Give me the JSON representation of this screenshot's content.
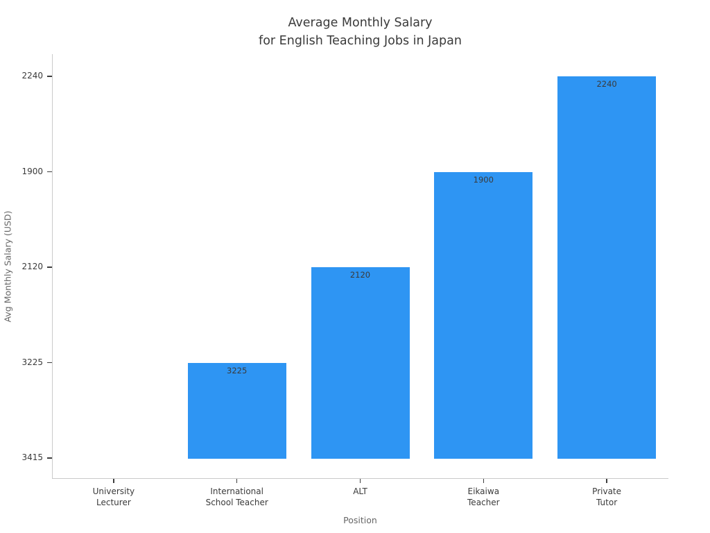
{
  "chart_data": {
    "type": "bar",
    "title": "Average Monthly Salary\nfor English Teaching Jobs in Japan",
    "title_lines": [
      "Average Monthly Salary",
      "for English Teaching Jobs in Japan"
    ],
    "xlabel": "Position",
    "ylabel": "Avg Monthly Salary (USD)",
    "categories": [
      "University Lecturer",
      "International School Teacher",
      "ALT",
      "Eikaiwa Teacher",
      "Private Tutor"
    ],
    "bars": [
      {
        "category": "University Lecturer",
        "label_lines": [
          "University",
          "Lecturer"
        ],
        "value_label": "",
        "height_level": 0
      },
      {
        "category": "International School Teacher",
        "label_lines": [
          "International",
          "School Teacher"
        ],
        "value_label": "3225",
        "height_level": 1
      },
      {
        "category": "ALT",
        "label_lines": [
          "ALT"
        ],
        "value_label": "2120",
        "height_level": 2
      },
      {
        "category": "Eikaiwa Teacher",
        "label_lines": [
          "Eikaiwa",
          "Teacher"
        ],
        "value_label": "1900",
        "height_level": 3
      },
      {
        "category": "Private Tutor",
        "label_lines": [
          "Private",
          "Tutor"
        ],
        "value_label": "2240",
        "height_level": 4
      }
    ],
    "ytick_labels_bottom_to_top": [
      "3415",
      "3225",
      "2120",
      "1900",
      "2240"
    ],
    "grid": false,
    "legend": false,
    "bar_width_fraction": 0.8,
    "colors": {
      "bar": "#2e95f3",
      "spine": "#c9c9c9",
      "tick_mark": "#3d3d3d",
      "tick_label": "#3a3a3a",
      "bar_value_label": "#3a3a3a",
      "axis_label": "#666666",
      "title": "#3a3a3a",
      "background": "#ffffff"
    }
  }
}
